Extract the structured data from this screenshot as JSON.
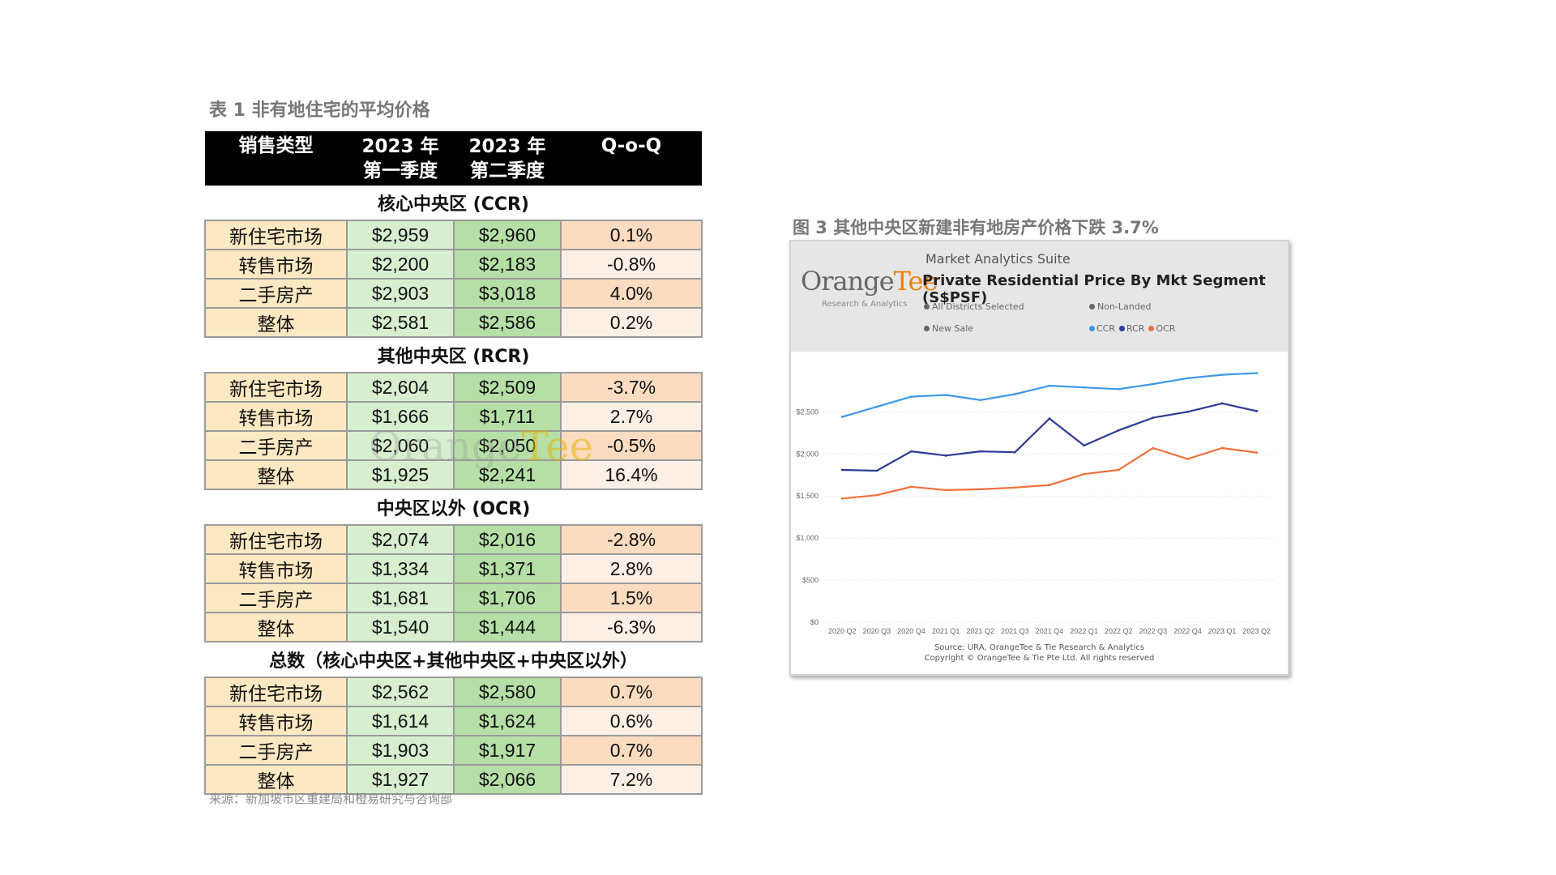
{
  "table_caption": "表 1 非有地住宅的平均价格",
  "table": {
    "headers": {
      "type": "销售类型",
      "q1_year": "2023 年",
      "q1_quarter": "第一季度",
      "q2_year": "2023 年",
      "q2_quarter": "第二季度",
      "qoq": "Q-o-Q"
    },
    "sections": [
      {
        "title": "核心中央区 (CCR)",
        "rows": [
          {
            "label": "新住宅市场",
            "q1": "$2,959",
            "q2": "$2,960",
            "qoq": "0.1%"
          },
          {
            "label": "转售市场",
            "q1": "$2,200",
            "q2": "$2,183",
            "qoq": "-0.8%"
          },
          {
            "label": "二手房产",
            "q1": "$2,903",
            "q2": "$3,018",
            "qoq": "4.0%"
          },
          {
            "label": "整体",
            "q1": "$2,581",
            "q2": "$2,586",
            "qoq": "0.2%"
          }
        ]
      },
      {
        "title": "其他中央区 (RCR)",
        "rows": [
          {
            "label": "新住宅市场",
            "q1": "$2,604",
            "q2": "$2,509",
            "qoq": "-3.7%"
          },
          {
            "label": "转售市场",
            "q1": "$1,666",
            "q2": "$1,711",
            "qoq": "2.7%"
          },
          {
            "label": "二手房产",
            "q1": "$2,060",
            "q2": "$2,050",
            "qoq": "-0.5%"
          },
          {
            "label": "整体",
            "q1": "$1,925",
            "q2": "$2,241",
            "qoq": "16.4%"
          }
        ]
      },
      {
        "title": "中央区以外 (OCR)",
        "rows": [
          {
            "label": "新住宅市场",
            "q1": "$2,074",
            "q2": "$2,016",
            "qoq": "-2.8%"
          },
          {
            "label": "转售市场",
            "q1": "$1,334",
            "q2": "$1,371",
            "qoq": "2.8%"
          },
          {
            "label": "二手房产",
            "q1": "$1,681",
            "q2": "$1,706",
            "qoq": "1.5%"
          },
          {
            "label": "整体",
            "q1": "$1,540",
            "q2": "$1,444",
            "qoq": "-6.3%"
          }
        ]
      },
      {
        "title": "总数（核心中央区+其他中央区+中央区以外）",
        "rows": [
          {
            "label": "新住宅市场",
            "q1": "$2,562",
            "q2": "$2,580",
            "qoq": "0.7%"
          },
          {
            "label": "转售市场",
            "q1": "$1,614",
            "q2": "$1,624",
            "qoq": "0.6%"
          },
          {
            "label": "二手房产",
            "q1": "$1,903",
            "q2": "$1,917",
            "qoq": "0.7%"
          },
          {
            "label": "整体",
            "q1": "$1,927",
            "q2": "$2,066",
            "qoq": "7.2%"
          }
        ]
      }
    ],
    "colors": {
      "label_bg": "#fce8c2",
      "q1_bg": "#d7efcf",
      "q2_bg": "#b5dfa6",
      "qoq_warm": "#fbdcc0",
      "qoq_pale": "#fbefe6"
    }
  },
  "source_note": "来源：新加坡市区重建局和橙易研究与咨询部",
  "watermark": {
    "part1": "Orange",
    "part2": "Tee"
  },
  "chart_caption": "图 3 其他中央区新建非有地房产价格下跌 3.7%",
  "chart_panel": {
    "suite_label": "Market Analytics Suite",
    "logo_part1": "Orange",
    "logo_part2": "Tee",
    "logo_sub": "Research & Analytics",
    "filters": [
      "All Districts Selected",
      "Non-Landed",
      "New Sale"
    ],
    "source_line1": "Source: URA, OrangeTee & Tie Research & Analytics",
    "source_line2": "Copyright © OrangeTee & Tie Pte Ltd. All rights reserved"
  },
  "chart_data": {
    "type": "line",
    "title": "Private Residential Price By Mkt Segment (S$PSF)",
    "x": [
      "2020 Q2",
      "2020 Q3",
      "2020 Q4",
      "2021 Q1",
      "2021 Q2",
      "2021 Q3",
      "2021 Q4",
      "2022 Q1",
      "2022 Q2",
      "2022 Q3",
      "2022 Q4",
      "2023 Q1",
      "2023 Q2"
    ],
    "y_ticks": [
      0,
      500,
      1000,
      1500,
      2000,
      2500
    ],
    "y_tick_labels": [
      "$0",
      "$500",
      "$1,000",
      "$1,500",
      "$2,000",
      "$2,500"
    ],
    "ylim": [
      0,
      3100
    ],
    "grid": true,
    "legend_position": "top-right",
    "series": [
      {
        "name": "CCR",
        "color": "#3d98e8",
        "values": [
          2440,
          2560,
          2680,
          2700,
          2640,
          2710,
          2810,
          2790,
          2770,
          2830,
          2900,
          2940,
          2960
        ]
      },
      {
        "name": "RCR",
        "color": "#2e3a96",
        "values": [
          1810,
          1800,
          2030,
          1980,
          2030,
          2020,
          2420,
          2100,
          2280,
          2430,
          2500,
          2600,
          2509
        ]
      },
      {
        "name": "OCR",
        "color": "#f0703a",
        "values": [
          1470,
          1510,
          1610,
          1570,
          1580,
          1600,
          1630,
          1760,
          1810,
          2070,
          1940,
          2070,
          2016
        ]
      }
    ]
  }
}
